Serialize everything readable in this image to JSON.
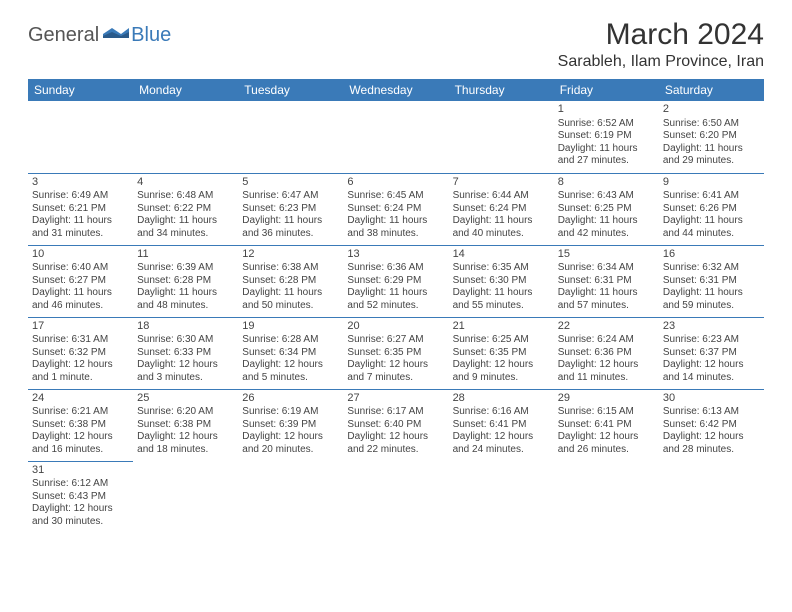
{
  "logo": {
    "general": "General",
    "blue": "Blue"
  },
  "title": "March 2024",
  "location": "Sarableh, Ilam Province, Iran",
  "colors": {
    "header_bg": "#3a7ab8",
    "header_text": "#ffffff",
    "border": "#3a7ab8",
    "text": "#444444"
  },
  "weekdays": [
    "Sunday",
    "Monday",
    "Tuesday",
    "Wednesday",
    "Thursday",
    "Friday",
    "Saturday"
  ],
  "weeks": [
    [
      null,
      null,
      null,
      null,
      null,
      {
        "d": "1",
        "sr": "Sunrise: 6:52 AM",
        "ss": "Sunset: 6:19 PM",
        "dl1": "Daylight: 11 hours",
        "dl2": "and 27 minutes."
      },
      {
        "d": "2",
        "sr": "Sunrise: 6:50 AM",
        "ss": "Sunset: 6:20 PM",
        "dl1": "Daylight: 11 hours",
        "dl2": "and 29 minutes."
      }
    ],
    [
      {
        "d": "3",
        "sr": "Sunrise: 6:49 AM",
        "ss": "Sunset: 6:21 PM",
        "dl1": "Daylight: 11 hours",
        "dl2": "and 31 minutes."
      },
      {
        "d": "4",
        "sr": "Sunrise: 6:48 AM",
        "ss": "Sunset: 6:22 PM",
        "dl1": "Daylight: 11 hours",
        "dl2": "and 34 minutes."
      },
      {
        "d": "5",
        "sr": "Sunrise: 6:47 AM",
        "ss": "Sunset: 6:23 PM",
        "dl1": "Daylight: 11 hours",
        "dl2": "and 36 minutes."
      },
      {
        "d": "6",
        "sr": "Sunrise: 6:45 AM",
        "ss": "Sunset: 6:24 PM",
        "dl1": "Daylight: 11 hours",
        "dl2": "and 38 minutes."
      },
      {
        "d": "7",
        "sr": "Sunrise: 6:44 AM",
        "ss": "Sunset: 6:24 PM",
        "dl1": "Daylight: 11 hours",
        "dl2": "and 40 minutes."
      },
      {
        "d": "8",
        "sr": "Sunrise: 6:43 AM",
        "ss": "Sunset: 6:25 PM",
        "dl1": "Daylight: 11 hours",
        "dl2": "and 42 minutes."
      },
      {
        "d": "9",
        "sr": "Sunrise: 6:41 AM",
        "ss": "Sunset: 6:26 PM",
        "dl1": "Daylight: 11 hours",
        "dl2": "and 44 minutes."
      }
    ],
    [
      {
        "d": "10",
        "sr": "Sunrise: 6:40 AM",
        "ss": "Sunset: 6:27 PM",
        "dl1": "Daylight: 11 hours",
        "dl2": "and 46 minutes."
      },
      {
        "d": "11",
        "sr": "Sunrise: 6:39 AM",
        "ss": "Sunset: 6:28 PM",
        "dl1": "Daylight: 11 hours",
        "dl2": "and 48 minutes."
      },
      {
        "d": "12",
        "sr": "Sunrise: 6:38 AM",
        "ss": "Sunset: 6:28 PM",
        "dl1": "Daylight: 11 hours",
        "dl2": "and 50 minutes."
      },
      {
        "d": "13",
        "sr": "Sunrise: 6:36 AM",
        "ss": "Sunset: 6:29 PM",
        "dl1": "Daylight: 11 hours",
        "dl2": "and 52 minutes."
      },
      {
        "d": "14",
        "sr": "Sunrise: 6:35 AM",
        "ss": "Sunset: 6:30 PM",
        "dl1": "Daylight: 11 hours",
        "dl2": "and 55 minutes."
      },
      {
        "d": "15",
        "sr": "Sunrise: 6:34 AM",
        "ss": "Sunset: 6:31 PM",
        "dl1": "Daylight: 11 hours",
        "dl2": "and 57 minutes."
      },
      {
        "d": "16",
        "sr": "Sunrise: 6:32 AM",
        "ss": "Sunset: 6:31 PM",
        "dl1": "Daylight: 11 hours",
        "dl2": "and 59 minutes."
      }
    ],
    [
      {
        "d": "17",
        "sr": "Sunrise: 6:31 AM",
        "ss": "Sunset: 6:32 PM",
        "dl1": "Daylight: 12 hours",
        "dl2": "and 1 minute."
      },
      {
        "d": "18",
        "sr": "Sunrise: 6:30 AM",
        "ss": "Sunset: 6:33 PM",
        "dl1": "Daylight: 12 hours",
        "dl2": "and 3 minutes."
      },
      {
        "d": "19",
        "sr": "Sunrise: 6:28 AM",
        "ss": "Sunset: 6:34 PM",
        "dl1": "Daylight: 12 hours",
        "dl2": "and 5 minutes."
      },
      {
        "d": "20",
        "sr": "Sunrise: 6:27 AM",
        "ss": "Sunset: 6:35 PM",
        "dl1": "Daylight: 12 hours",
        "dl2": "and 7 minutes."
      },
      {
        "d": "21",
        "sr": "Sunrise: 6:25 AM",
        "ss": "Sunset: 6:35 PM",
        "dl1": "Daylight: 12 hours",
        "dl2": "and 9 minutes."
      },
      {
        "d": "22",
        "sr": "Sunrise: 6:24 AM",
        "ss": "Sunset: 6:36 PM",
        "dl1": "Daylight: 12 hours",
        "dl2": "and 11 minutes."
      },
      {
        "d": "23",
        "sr": "Sunrise: 6:23 AM",
        "ss": "Sunset: 6:37 PM",
        "dl1": "Daylight: 12 hours",
        "dl2": "and 14 minutes."
      }
    ],
    [
      {
        "d": "24",
        "sr": "Sunrise: 6:21 AM",
        "ss": "Sunset: 6:38 PM",
        "dl1": "Daylight: 12 hours",
        "dl2": "and 16 minutes."
      },
      {
        "d": "25",
        "sr": "Sunrise: 6:20 AM",
        "ss": "Sunset: 6:38 PM",
        "dl1": "Daylight: 12 hours",
        "dl2": "and 18 minutes."
      },
      {
        "d": "26",
        "sr": "Sunrise: 6:19 AM",
        "ss": "Sunset: 6:39 PM",
        "dl1": "Daylight: 12 hours",
        "dl2": "and 20 minutes."
      },
      {
        "d": "27",
        "sr": "Sunrise: 6:17 AM",
        "ss": "Sunset: 6:40 PM",
        "dl1": "Daylight: 12 hours",
        "dl2": "and 22 minutes."
      },
      {
        "d": "28",
        "sr": "Sunrise: 6:16 AM",
        "ss": "Sunset: 6:41 PM",
        "dl1": "Daylight: 12 hours",
        "dl2": "and 24 minutes."
      },
      {
        "d": "29",
        "sr": "Sunrise: 6:15 AM",
        "ss": "Sunset: 6:41 PM",
        "dl1": "Daylight: 12 hours",
        "dl2": "and 26 minutes."
      },
      {
        "d": "30",
        "sr": "Sunrise: 6:13 AM",
        "ss": "Sunset: 6:42 PM",
        "dl1": "Daylight: 12 hours",
        "dl2": "and 28 minutes."
      }
    ],
    [
      {
        "d": "31",
        "sr": "Sunrise: 6:12 AM",
        "ss": "Sunset: 6:43 PM",
        "dl1": "Daylight: 12 hours",
        "dl2": "and 30 minutes."
      },
      null,
      null,
      null,
      null,
      null,
      null
    ]
  ]
}
